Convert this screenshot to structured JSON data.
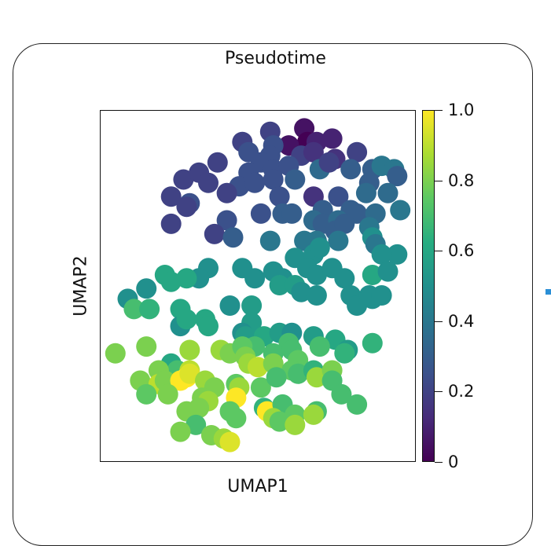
{
  "chart_data": {
    "type": "scatter",
    "title": "Pseudotime",
    "xlabel": "UMAP1",
    "ylabel": "UMAP2",
    "xlim": [
      0,
      100
    ],
    "ylim": [
      0,
      100
    ],
    "colorbar": {
      "label_ticks": [
        "0",
        "0.2",
        "0.4",
        "0.6",
        "0.8",
        "1.0"
      ],
      "tick_values": [
        0,
        0.2,
        0.4,
        0.6,
        0.8,
        1.0
      ],
      "range": [
        0,
        1
      ],
      "colormap": "viridis"
    },
    "points": [
      [
        54,
        95,
        0.2
      ],
      [
        65,
        96,
        0.05
      ],
      [
        66,
        92,
        0.0
      ],
      [
        60,
        91,
        0.05
      ],
      [
        69,
        92,
        0.1
      ],
      [
        74,
        93,
        0.1
      ],
      [
        55,
        91,
        0.25
      ],
      [
        45,
        92,
        0.2
      ],
      [
        47,
        89,
        0.25
      ],
      [
        54,
        88,
        0.25
      ],
      [
        64,
        88,
        0.2
      ],
      [
        68,
        89,
        0.15
      ],
      [
        75,
        87,
        0.15
      ],
      [
        82,
        89,
        0.2
      ],
      [
        51,
        86,
        0.25
      ],
      [
        37,
        86,
        0.2
      ],
      [
        47,
        83,
        0.25
      ],
      [
        55,
        84,
        0.25
      ],
      [
        60,
        85,
        0.25
      ],
      [
        70,
        84,
        0.35
      ],
      [
        73,
        86,
        0.2
      ],
      [
        80,
        84,
        0.3
      ],
      [
        87,
        84,
        0.3
      ],
      [
        90,
        85,
        0.4
      ],
      [
        94,
        84,
        0.4
      ],
      [
        95,
        82,
        0.3
      ],
      [
        26,
        81,
        0.2
      ],
      [
        31,
        83,
        0.2
      ],
      [
        34,
        80,
        0.2
      ],
      [
        44,
        79,
        0.25
      ],
      [
        49,
        80,
        0.25
      ],
      [
        55,
        81,
        0.25
      ],
      [
        62,
        81,
        0.3
      ],
      [
        86,
        80,
        0.3
      ],
      [
        40,
        77,
        0.2
      ],
      [
        57,
        76,
        0.25
      ],
      [
        68,
        76,
        0.15
      ],
      [
        76,
        76,
        0.25
      ],
      [
        85,
        77,
        0.35
      ],
      [
        92,
        77,
        0.35
      ],
      [
        22,
        76,
        0.2
      ],
      [
        28,
        74,
        0.25
      ],
      [
        27,
        73,
        0.2
      ],
      [
        51,
        71,
        0.25
      ],
      [
        58,
        71,
        0.3
      ],
      [
        61,
        71,
        0.3
      ],
      [
        71,
        72,
        0.3
      ],
      [
        80,
        72,
        0.3
      ],
      [
        82,
        71,
        0.3
      ],
      [
        88,
        71,
        0.35
      ],
      [
        96,
        72,
        0.4
      ],
      [
        22,
        68,
        0.2
      ],
      [
        40,
        69,
        0.25
      ],
      [
        68,
        69,
        0.35
      ],
      [
        71,
        68,
        0.3
      ],
      [
        76,
        69,
        0.35
      ],
      [
        36,
        65,
        0.2
      ],
      [
        42,
        64,
        0.3
      ],
      [
        54,
        63,
        0.4
      ],
      [
        65,
        63,
        0.4
      ],
      [
        69,
        63,
        0.4
      ],
      [
        75,
        66,
        0.3
      ],
      [
        78,
        68,
        0.3
      ],
      [
        86,
        67,
        0.4
      ],
      [
        87,
        64,
        0.5
      ],
      [
        76,
        63,
        0.4
      ],
      [
        88,
        62,
        0.4
      ],
      [
        95,
        59,
        0.5
      ],
      [
        62,
        58,
        0.5
      ],
      [
        68,
        59,
        0.5
      ],
      [
        70,
        61,
        0.5
      ],
      [
        90,
        59,
        0.5
      ],
      [
        34,
        55,
        0.5
      ],
      [
        45,
        55,
        0.5
      ],
      [
        49,
        52,
        0.5
      ],
      [
        55,
        54,
        0.5
      ],
      [
        58,
        52,
        0.5
      ],
      [
        66,
        55,
        0.5
      ],
      [
        69,
        53,
        0.5
      ],
      [
        74,
        55,
        0.5
      ],
      [
        78,
        52,
        0.5
      ],
      [
        87,
        53,
        0.6
      ],
      [
        92,
        54,
        0.5
      ],
      [
        20,
        53,
        0.6
      ],
      [
        31,
        52,
        0.5
      ],
      [
        22,
        51,
        0.6
      ],
      [
        14,
        49,
        0.5
      ],
      [
        27,
        52,
        0.6
      ],
      [
        57,
        50,
        0.55
      ],
      [
        62,
        50,
        0.55
      ],
      [
        64,
        48,
        0.5
      ],
      [
        69,
        47,
        0.5
      ],
      [
        80,
        47,
        0.5
      ],
      [
        87,
        46,
        0.5
      ],
      [
        82,
        44,
        0.5
      ],
      [
        86,
        47,
        0.5
      ],
      [
        90,
        47,
        0.5
      ],
      [
        8,
        46,
        0.5
      ],
      [
        10,
        43,
        0.7
      ],
      [
        15,
        43,
        0.65
      ],
      [
        25,
        43,
        0.6
      ],
      [
        25,
        38,
        0.5
      ],
      [
        27,
        40,
        0.6
      ],
      [
        33,
        40,
        0.6
      ],
      [
        34,
        38,
        0.6
      ],
      [
        41,
        44,
        0.5
      ],
      [
        48,
        44,
        0.55
      ],
      [
        48,
        39,
        0.55
      ],
      [
        45,
        36,
        0.5
      ],
      [
        46,
        35,
        0.55
      ],
      [
        52,
        35,
        0.6
      ],
      [
        57,
        36,
        0.55
      ],
      [
        61,
        36,
        0.5
      ],
      [
        68,
        35,
        0.55
      ],
      [
        75,
        34,
        0.6
      ],
      [
        79,
        31,
        0.55
      ],
      [
        87,
        33,
        0.65
      ],
      [
        4,
        30,
        0.8
      ],
      [
        14,
        32,
        0.8
      ],
      [
        28,
        31,
        0.85
      ],
      [
        38,
        31,
        0.85
      ],
      [
        49,
        32,
        0.7
      ],
      [
        55,
        30,
        0.7
      ],
      [
        60,
        33,
        0.7
      ],
      [
        61,
        31,
        0.7
      ],
      [
        70,
        32,
        0.7
      ],
      [
        63,
        28,
        0.75
      ],
      [
        78,
        30,
        0.65
      ],
      [
        22,
        27,
        0.6
      ],
      [
        24,
        25,
        0.7
      ],
      [
        18,
        25,
        0.8
      ],
      [
        28,
        25,
        0.9
      ],
      [
        41,
        30,
        0.8
      ],
      [
        45,
        32,
        0.75
      ],
      [
        46,
        29,
        0.8
      ],
      [
        47,
        27,
        0.85
      ],
      [
        50,
        26,
        0.9
      ],
      [
        55,
        27,
        0.8
      ],
      [
        61,
        25,
        0.75
      ],
      [
        63,
        24,
        0.7
      ],
      [
        68,
        25,
        0.65
      ],
      [
        69,
        23,
        0.85
      ],
      [
        74,
        25,
        0.8
      ],
      [
        12,
        22,
        0.8
      ],
      [
        18,
        21,
        0.9
      ],
      [
        20,
        22,
        0.8
      ],
      [
        25,
        22,
        1.0
      ],
      [
        27,
        23,
        1.0
      ],
      [
        28,
        24,
        0.95
      ],
      [
        33,
        22,
        0.85
      ],
      [
        36,
        20,
        0.8
      ],
      [
        43,
        21,
        0.75
      ],
      [
        44,
        20,
        0.85
      ],
      [
        51,
        20,
        0.75
      ],
      [
        56,
        23,
        0.7
      ],
      [
        74,
        22,
        0.7
      ],
      [
        14,
        18,
        0.75
      ],
      [
        21,
        18,
        0.8
      ],
      [
        32,
        17,
        0.8
      ],
      [
        34,
        16,
        0.85
      ],
      [
        43,
        17,
        1.0
      ],
      [
        52,
        14,
        0.65
      ],
      [
        77,
        18,
        0.7
      ],
      [
        82,
        15,
        0.7
      ],
      [
        27,
        13,
        0.8
      ],
      [
        31,
        14,
        0.8
      ],
      [
        41,
        13,
        0.75
      ],
      [
        53,
        13,
        1.0
      ],
      [
        58,
        15,
        0.7
      ],
      [
        62,
        12,
        0.75
      ],
      [
        69,
        13,
        0.7
      ],
      [
        68,
        12,
        0.85
      ],
      [
        30,
        9,
        0.7
      ],
      [
        43,
        11,
        0.75
      ],
      [
        55,
        11,
        0.85
      ],
      [
        57,
        10,
        0.75
      ],
      [
        62,
        9,
        0.85
      ],
      [
        25,
        7,
        0.8
      ],
      [
        35,
        6,
        0.8
      ],
      [
        39,
        5,
        0.85
      ],
      [
        41,
        4,
        0.95
      ]
    ]
  }
}
